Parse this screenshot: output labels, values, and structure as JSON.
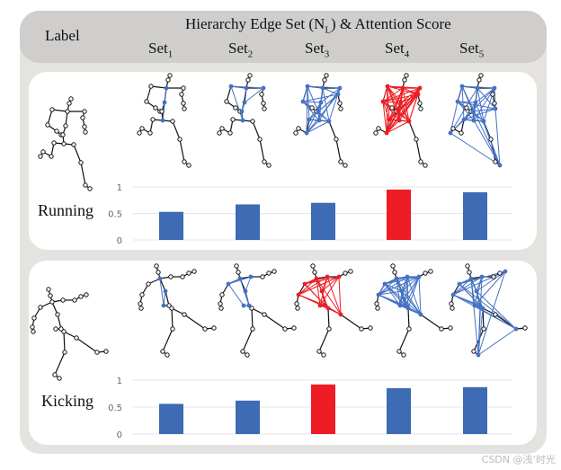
{
  "header": {
    "label_col": "Label",
    "title": "Hierarchy Edge Set (N",
    "title_sub": "L",
    "title_end": ") & Attention Score",
    "sets": [
      {
        "base": "Set",
        "sub": "1"
      },
      {
        "base": "Set",
        "sub": "2"
      },
      {
        "base": "Set",
        "sub": "3"
      },
      {
        "base": "Set",
        "sub": "4"
      },
      {
        "base": "Set",
        "sub": "5"
      }
    ]
  },
  "colors": {
    "highlight_blue": "#4472c4",
    "highlight_red": "#ee1c24",
    "bar_blue": "#3d6bb4",
    "bar_red": "#ee1c24",
    "skeleton": "#111111"
  },
  "rows": [
    {
      "label": "Running",
      "highlight_set": 4
    },
    {
      "label": "Kicking",
      "highlight_set": 3
    }
  ],
  "chart_data": [
    {
      "type": "bar",
      "categories": [
        "Set1",
        "Set2",
        "Set3",
        "Set4",
        "Set5"
      ],
      "values": [
        0.53,
        0.67,
        0.7,
        0.95,
        0.9
      ],
      "ylim": [
        0,
        1
      ],
      "yticks": [
        "0",
        "0.5",
        "1"
      ],
      "grid": true
    },
    {
      "type": "bar",
      "categories": [
        "Set1",
        "Set2",
        "Set3",
        "Set4",
        "Set5"
      ],
      "values": [
        0.56,
        0.62,
        0.92,
        0.85,
        0.87
      ],
      "ylim": [
        0,
        1
      ],
      "yticks": [
        "0",
        "0.5",
        "1"
      ],
      "grid": true
    }
  ],
  "watermark": "CSDN @浅‘时光"
}
